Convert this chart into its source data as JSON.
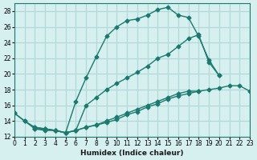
{
  "xlabel": "Humidex (Indice chaleur)",
  "bg_color": "#d6efef",
  "grid_color": "#b0d8d8",
  "line_color": "#1a7a6e",
  "xlim": [
    0,
    23
  ],
  "ylim": [
    12,
    29
  ],
  "xticks": [
    0,
    1,
    2,
    3,
    4,
    5,
    6,
    7,
    8,
    9,
    10,
    11,
    12,
    13,
    14,
    15,
    16,
    17,
    18,
    19,
    20,
    21,
    22,
    23
  ],
  "yticks": [
    12,
    14,
    16,
    18,
    20,
    22,
    24,
    26,
    28
  ],
  "lines": [
    {
      "x": [
        0,
        1,
        2,
        3,
        4,
        5,
        6,
        7,
        8,
        9,
        10,
        11,
        12,
        13,
        14,
        15,
        16,
        17,
        18,
        19,
        20
      ],
      "y": [
        15.0,
        14.0,
        13.0,
        12.8,
        12.8,
        12.5,
        16.5,
        19.5,
        22.2,
        24.8,
        26.0,
        26.8,
        27.0,
        27.5,
        28.2,
        28.5,
        27.5,
        27.2,
        24.8,
        21.8,
        19.8
      ]
    },
    {
      "x": [
        2,
        3,
        4,
        5,
        6,
        7,
        8,
        9,
        10,
        11,
        12,
        13,
        14,
        15,
        16,
        17,
        18,
        19,
        20,
        21,
        22,
        23
      ],
      "y": [
        13.0,
        13.0,
        12.8,
        12.5,
        12.8,
        13.2,
        13.5,
        13.8,
        14.2,
        14.8,
        15.2,
        15.8,
        16.2,
        16.8,
        17.2,
        17.5,
        17.8,
        18.0,
        18.2,
        18.5,
        18.5,
        17.8
      ]
    },
    {
      "x": [
        0,
        1,
        2,
        3,
        4,
        5,
        6,
        7,
        8,
        9,
        10,
        11,
        12,
        13,
        14,
        15,
        16,
        17,
        18
      ],
      "y": [
        15.0,
        14.0,
        13.2,
        13.0,
        12.8,
        12.5,
        12.8,
        13.2,
        13.5,
        14.0,
        14.5,
        15.0,
        15.5,
        16.0,
        16.5,
        17.0,
        17.5,
        17.8,
        17.8
      ]
    },
    {
      "x": [
        2,
        3,
        4,
        5,
        6,
        7,
        8,
        9,
        10,
        11,
        12,
        13,
        14,
        15,
        16,
        17,
        18,
        19,
        20
      ],
      "y": [
        13.2,
        13.0,
        12.8,
        12.5,
        12.8,
        16.0,
        17.0,
        18.0,
        18.8,
        19.5,
        20.2,
        21.0,
        22.0,
        22.5,
        23.5,
        24.5,
        25.0,
        21.5,
        19.8
      ]
    }
  ]
}
